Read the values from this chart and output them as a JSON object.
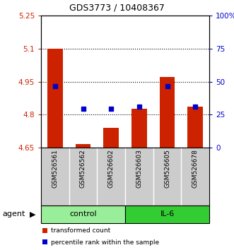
{
  "title": "GDS3773 / 10408367",
  "samples": [
    "GSM526561",
    "GSM526562",
    "GSM526602",
    "GSM526603",
    "GSM526605",
    "GSM526678"
  ],
  "groups": [
    "control",
    "control",
    "control",
    "IL-6",
    "IL-6",
    "IL-6"
  ],
  "bar_values": [
    5.1,
    4.665,
    4.74,
    4.825,
    4.97,
    4.835
  ],
  "dot_values": [
    4.93,
    4.825,
    4.825,
    4.835,
    4.93,
    4.835
  ],
  "bar_bottom": 4.65,
  "ylim_left": [
    4.65,
    5.25
  ],
  "ylim_right": [
    0,
    100
  ],
  "yticks_left": [
    4.65,
    4.8,
    4.95,
    5.1,
    5.25
  ],
  "yticks_right": [
    0,
    25,
    50,
    75,
    100
  ],
  "ytick_labels_left": [
    "4.65",
    "4.8",
    "4.95",
    "5.1",
    "5.25"
  ],
  "ytick_labels_right": [
    "0",
    "25",
    "50",
    "75",
    "100%"
  ],
  "bar_color": "#cc2200",
  "dot_color": "#0000cc",
  "group_colors_control": "#99ee99",
  "group_colors_il6": "#33cc33",
  "agent_label": "agent",
  "control_label": "control",
  "il6_label": "IL-6",
  "legend_bar_label": "transformed count",
  "legend_dot_label": "percentile rank within the sample",
  "tick_label_color_left": "#cc2200",
  "tick_label_color_right": "#0000cc",
  "sample_bg_color": "#cccccc",
  "grid_lines": [
    4.8,
    4.95,
    5.1
  ]
}
